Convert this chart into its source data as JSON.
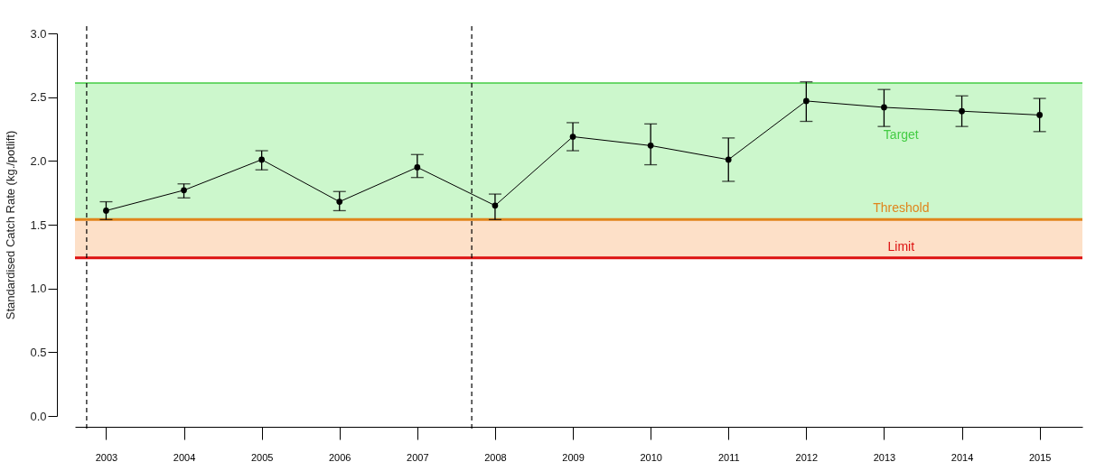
{
  "chart_data": {
    "type": "line",
    "ylabel": "Standardised Catch Rate (kg./potlift)",
    "x": [
      2003,
      2004,
      2005,
      2006,
      2007,
      2008,
      2009,
      2010,
      2011,
      2012,
      2013,
      2014,
      2015
    ],
    "series": [
      {
        "color": "#000000",
        "values": [
          1.61,
          1.77,
          2.01,
          1.68,
          1.95,
          1.65,
          2.19,
          2.12,
          2.01,
          2.47,
          2.42,
          2.39,
          2.36
        ],
        "errors": [
          [
            1.54,
            1.68
          ],
          [
            1.71,
            1.82
          ],
          [
            1.93,
            2.08
          ],
          [
            1.61,
            1.76
          ],
          [
            1.87,
            2.05
          ],
          [
            1.54,
            1.74
          ],
          [
            2.08,
            2.3
          ],
          [
            1.97,
            2.29
          ],
          [
            1.84,
            2.18
          ],
          [
            2.31,
            2.62
          ],
          [
            2.27,
            2.56
          ],
          [
            2.27,
            2.51
          ],
          [
            2.23,
            2.49
          ]
        ]
      }
    ],
    "marker": "circle",
    "line_style": "solid",
    "xlim": [
      2002.6,
      2015.55
    ],
    "xticks": [
      2003,
      2004,
      2005,
      2006,
      2007,
      2008,
      2009,
      2010,
      2011,
      2012,
      2013,
      2014,
      2015
    ],
    "ylim": [
      0,
      3
    ],
    "yticks": [
      {
        "value": 0,
        "label": "0.0"
      },
      0.5,
      {
        "value": 1,
        "label": "1.0"
      },
      1.5,
      {
        "value": 2,
        "label": "2.0"
      },
      2.5,
      {
        "value": 3,
        "label": "3.0"
      }
    ],
    "grid": false,
    "bands": [
      {
        "axis": "y",
        "from": 1.54,
        "to": 2.61,
        "color": "#ccf7cc"
      },
      {
        "axis": "y",
        "from": 1.24,
        "to": 1.54,
        "color": "#fde0c8"
      }
    ],
    "ref_lines": [
      {
        "axis": "y",
        "value": 2.61,
        "label": "Target",
        "color": "#44cc44"
      },
      {
        "axis": "y",
        "value": 1.54,
        "label": "Threshold",
        "color": "#e0851c"
      },
      {
        "axis": "y",
        "value": 1.24,
        "label": "Limit",
        "color": "#dd1111"
      },
      {
        "axis": "x",
        "value": 2002.75,
        "color": "#000000",
        "line_style": "dashed"
      },
      {
        "axis": "x",
        "value": 2007.7,
        "color": "#000000",
        "line_style": "dashed"
      }
    ]
  }
}
